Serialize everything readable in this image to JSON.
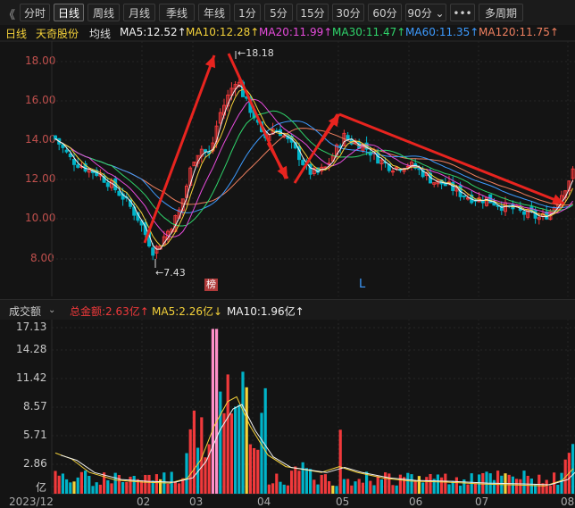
{
  "toolbar": {
    "back_icon": "double-chevron-left-icon",
    "buttons": [
      "分时",
      "日线",
      "周线",
      "月线",
      "季线",
      "年线",
      "1分",
      "5分",
      "15分",
      "30分",
      "60分",
      "90分 ⌄",
      "•••",
      "多周期"
    ],
    "active": "日线"
  },
  "legend": {
    "period": "日线",
    "stock_name": "天奇股份",
    "ma_label": "均线",
    "ma5": "MA5:12.52↑",
    "ma10": "MA10:12.28↑",
    "ma20": "MA20:11.99↑",
    "ma30": "MA30:11.47↑",
    "ma60": "MA60:11.35↑",
    "ma120": "MA120:11.75↑"
  },
  "colors": {
    "up": "#f0393b",
    "down": "#00b3c8",
    "ma5": "#f2f2f2",
    "ma10": "#f5d23a",
    "ma20": "#e64bdb",
    "ma30": "#2fd46b",
    "ma60": "#3d9bff",
    "ma120": "#f08060",
    "trend_line": "#e8241f"
  },
  "price_axis": [
    "18.00",
    "16.00",
    "14.00",
    "12.00",
    "10.00",
    "8.00"
  ],
  "annotations": {
    "high": "←18.18",
    "low": "←7.43",
    "bang_tag": "榜",
    "l_tag": "L"
  },
  "volume_header": {
    "label": "成交额",
    "dropdown_icon": "chevron-down-icon",
    "total": "总金额:2.63亿↑",
    "ma5": "MA5:2.26亿↓",
    "ma10": "MA10:1.96亿↑"
  },
  "volume_axis": [
    "17.13",
    "14.28",
    "11.42",
    "8.57",
    "5.71",
    "2.86",
    "亿"
  ],
  "date_axis": [
    "2023/12",
    "02",
    "03",
    "04",
    "05",
    "06",
    "07",
    "08"
  ]
}
